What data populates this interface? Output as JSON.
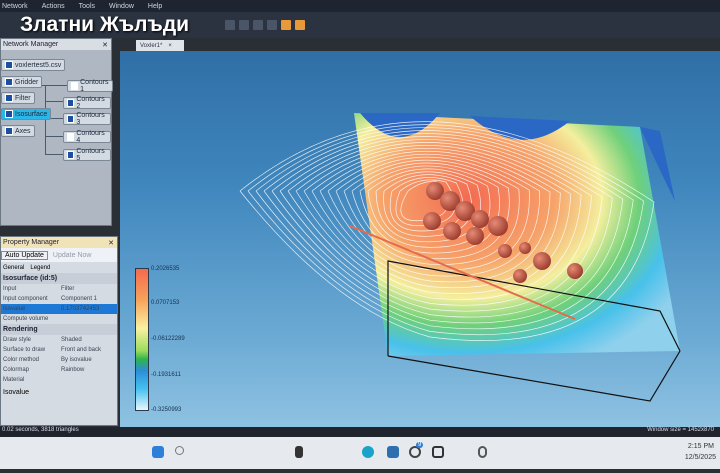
{
  "watermark": "Златни Жълъди",
  "menu": [
    "Network",
    "Actions",
    "Tools",
    "Window",
    "Help"
  ],
  "network_manager": {
    "title": "Network Manager",
    "nodes": [
      {
        "label": "voxlertest5.csv",
        "checked": true
      },
      {
        "label": "Gridder",
        "checked": true
      },
      {
        "label": "Filter",
        "checked": true
      },
      {
        "label": "Isosurface",
        "checked": true,
        "selected": true
      },
      {
        "label": "Axes",
        "checked": true
      }
    ],
    "contours": [
      {
        "label": "Contours 1",
        "checked": false
      },
      {
        "label": "Contours 2",
        "checked": true
      },
      {
        "label": "Contours 3",
        "checked": true
      },
      {
        "label": "Contours 4",
        "checked": false
      },
      {
        "label": "Contours 5",
        "checked": true
      }
    ]
  },
  "property_manager": {
    "title": "Property Manager",
    "auto_update": "Auto Update",
    "update_now": "Update Now",
    "tabs": [
      "General",
      "Legend"
    ],
    "section": "Isosurface (id:5)",
    "props": [
      {
        "k": "Input",
        "v": "Filter"
      },
      {
        "k": "Input component",
        "v": "Component 1"
      },
      {
        "k": "Isovalue",
        "v": "0.1703742453"
      },
      {
        "k": "Compute volume",
        "v": ""
      }
    ],
    "rendering": "Rendering",
    "rprops": [
      {
        "k": "Draw style",
        "v": "Shaded"
      },
      {
        "k": "Surface to draw",
        "v": "Front and back"
      },
      {
        "k": "Color method",
        "v": "By isovalue"
      },
      {
        "k": "Colormap",
        "v": "Rainbow"
      },
      {
        "k": "Material",
        "v": ""
      }
    ],
    "footer": "Isovalue"
  },
  "document_tab": "Voxler1*",
  "colorbar": {
    "labels": [
      "0.2026535",
      "0.0707153",
      "-0.06122289",
      "-0.1931611",
      "-0.3250993"
    ],
    "colors": [
      "#f56a4e",
      "#f7a35b",
      "#fbf1a1",
      "#2fb54a",
      "#2a8ed6",
      "#e8f6fb"
    ]
  },
  "status": {
    "left": "0.02 seconds, 3818 triangles",
    "right": "Window size = 1452x870"
  },
  "taskbar": {
    "time": "2:15 PM",
    "date": "12/5/2025",
    "notification_count": "9"
  }
}
